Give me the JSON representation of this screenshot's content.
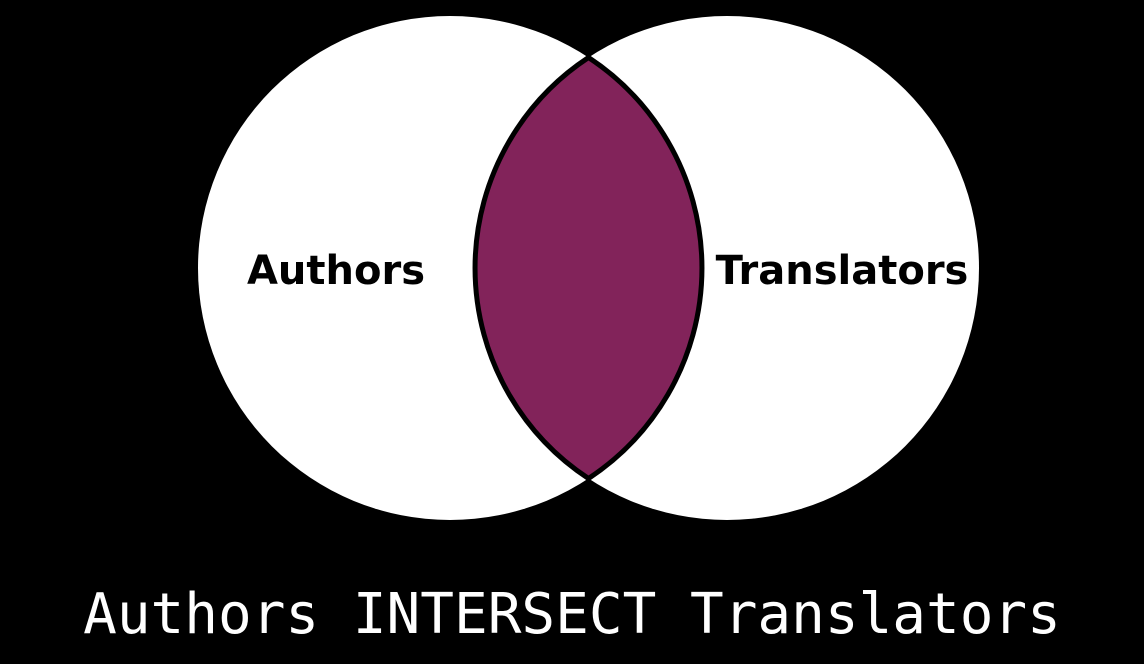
{
  "diagram": {
    "type": "venn",
    "sets": [
      {
        "id": "left",
        "label": "Authors"
      },
      {
        "id": "right",
        "label": "Translators"
      }
    ],
    "highlighted_region": "intersection",
    "colors": {
      "background": "#000000",
      "circle_fill": "#ffffff",
      "outline": "#000000",
      "highlight": "#82235a",
      "caption_text": "#ffffff"
    }
  },
  "caption": "Authors INTERSECT Translators"
}
